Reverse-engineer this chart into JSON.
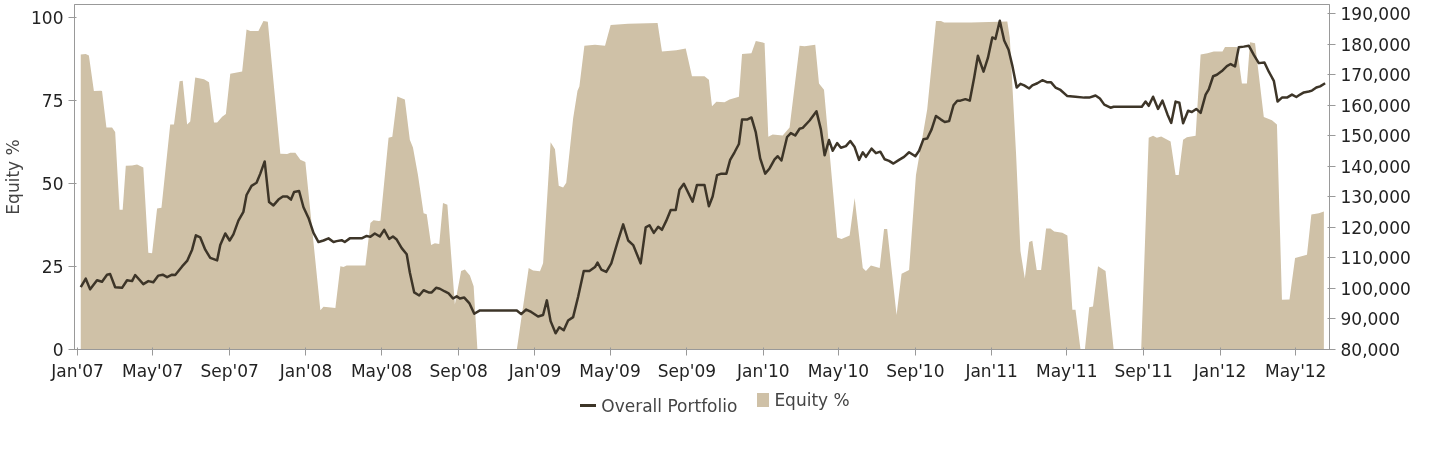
{
  "chart_data": {
    "type": "line",
    "ylabel": "Equity %",
    "legend": "bottom",
    "grid": false,
    "xlim": [
      "2006-12-27",
      "2012-06-24"
    ],
    "xticks": [
      {
        "value": "2007-01-01",
        "label": "Jan'07"
      },
      {
        "value": "2007-05-01",
        "label": "May'07"
      },
      {
        "value": "2007-09-01",
        "label": "Sep'07"
      },
      {
        "value": "2008-01-01",
        "label": "Jan'08"
      },
      {
        "value": "2008-05-01",
        "label": "May'08"
      },
      {
        "value": "2008-09-01",
        "label": "Sep'08"
      },
      {
        "value": "2009-01-01",
        "label": "Jan'09"
      },
      {
        "value": "2009-05-01",
        "label": "May'09"
      },
      {
        "value": "2009-09-01",
        "label": "Sep'09"
      },
      {
        "value": "2010-01-01",
        "label": "Jan'10"
      },
      {
        "value": "2010-05-01",
        "label": "May'10"
      },
      {
        "value": "2010-09-01",
        "label": "Sep'10"
      },
      {
        "value": "2011-01-01",
        "label": "Jan'11"
      },
      {
        "value": "2011-05-01",
        "label": "May'11"
      },
      {
        "value": "2011-09-01",
        "label": "Sep'11"
      },
      {
        "value": "2012-01-01",
        "label": "Jan'12"
      },
      {
        "value": "2012-05-01",
        "label": "May'12"
      }
    ],
    "ylim": [
      0,
      104
    ],
    "yticks": [
      0,
      25,
      50,
      75,
      100
    ],
    "y2lim": [
      80000,
      193000
    ],
    "y2ticks": [
      {
        "value": 80000,
        "label": "80,000"
      },
      {
        "value": 90000,
        "label": "90,000"
      },
      {
        "value": 100000,
        "label": "100,000"
      },
      {
        "value": 110000,
        "label": "110,000"
      },
      {
        "value": 120000,
        "label": "120,000"
      },
      {
        "value": 130000,
        "label": "130,000"
      },
      {
        "value": 140000,
        "label": "140,000"
      },
      {
        "value": 150000,
        "label": "150,000"
      },
      {
        "value": 160000,
        "label": "160,000"
      },
      {
        "value": 170000,
        "label": "170,000"
      },
      {
        "value": 180000,
        "label": "180,000"
      },
      {
        "value": 190000,
        "label": "190,000"
      }
    ],
    "series": [
      {
        "name": "Overall Portfolio",
        "axis": "y2",
        "color": "#3d3528",
        "line_style": "solid",
        "x": [
          "2007-01-06",
          "2007-01-14",
          "2007-01-21",
          "2007-02-01",
          "2007-02-09",
          "2007-02-17",
          "2007-02-22",
          "2007-03-02",
          "2007-03-13",
          "2007-03-21",
          "2007-03-29",
          "2007-04-03",
          "2007-04-16",
          "2007-04-24",
          "2007-05-02",
          "2007-05-10",
          "2007-05-17",
          "2007-05-24",
          "2007-06-01",
          "2007-06-06",
          "2007-06-17",
          "2007-06-25",
          "2007-07-03",
          "2007-07-09",
          "2007-07-16",
          "2007-07-24",
          "2007-08-01",
          "2007-08-12",
          "2007-08-17",
          "2007-08-25",
          "2007-09-01",
          "2007-09-07",
          "2007-09-15",
          "2007-09-23",
          "2007-09-28",
          "2007-10-06",
          "2007-10-14",
          "2007-10-20",
          "2007-10-27",
          "2007-11-03",
          "2007-11-10",
          "2007-11-18",
          "2007-11-25",
          "2007-12-02",
          "2007-12-08",
          "2007-12-13",
          "2007-12-21",
          "2007-12-28",
          "2008-01-05",
          "2008-01-13",
          "2008-01-21",
          "2008-01-29",
          "2008-02-06",
          "2008-02-14",
          "2008-02-19",
          "2008-02-27",
          "2008-03-03",
          "2008-03-11",
          "2008-03-30",
          "2008-04-07",
          "2008-04-13",
          "2008-04-20",
          "2008-04-28",
          "2008-05-05",
          "2008-05-13",
          "2008-05-19",
          "2008-05-25",
          "2008-06-02",
          "2008-06-10",
          "2008-06-15",
          "2008-06-22",
          "2008-06-30",
          "2008-07-07",
          "2008-07-15",
          "2008-07-20",
          "2008-07-27",
          "2008-08-02",
          "2008-08-10",
          "2008-08-16",
          "2008-08-23",
          "2008-08-29",
          "2008-09-03",
          "2008-09-10",
          "2008-09-18",
          "2008-09-26",
          "2008-10-05",
          "2008-12-03",
          "2008-12-10",
          "2008-12-18",
          "2008-12-26",
          "2009-01-06",
          "2009-01-14",
          "2009-01-20",
          "2009-01-26",
          "2009-02-03",
          "2009-02-09",
          "2009-02-16",
          "2009-02-23",
          "2009-03-03",
          "2009-03-11",
          "2009-03-20",
          "2009-03-29",
          "2009-04-07",
          "2009-04-11",
          "2009-04-17",
          "2009-04-25",
          "2009-05-03",
          "2009-05-13",
          "2009-05-22",
          "2009-05-30",
          "2009-06-07",
          "2009-06-19",
          "2009-06-27",
          "2009-07-03",
          "2009-07-10",
          "2009-07-17",
          "2009-07-23",
          "2009-07-30",
          "2009-08-06",
          "2009-08-14",
          "2009-08-20",
          "2009-08-27",
          "2009-09-10",
          "2009-09-17",
          "2009-09-29",
          "2009-10-06",
          "2009-10-12",
          "2009-10-19",
          "2009-10-26",
          "2009-11-03",
          "2009-11-09",
          "2009-11-16",
          "2009-11-23",
          "2009-11-28",
          "2009-12-06",
          "2009-12-13",
          "2009-12-20",
          "2009-12-27",
          "2010-01-04",
          "2010-01-11",
          "2010-01-19",
          "2010-01-24",
          "2010-01-30",
          "2010-02-08",
          "2010-02-14",
          "2010-02-21",
          "2010-02-28",
          "2010-03-05",
          "2010-03-16",
          "2010-03-27",
          "2010-04-03",
          "2010-04-09",
          "2010-04-16",
          "2010-04-22",
          "2010-04-29",
          "2010-05-05",
          "2010-05-13",
          "2010-05-20",
          "2010-05-27",
          "2010-06-03",
          "2010-06-09",
          "2010-06-14",
          "2010-06-23",
          "2010-06-30",
          "2010-07-07",
          "2010-07-14",
          "2010-07-21",
          "2010-07-28",
          "2010-08-06",
          "2010-08-14",
          "2010-08-22",
          "2010-09-01",
          "2010-09-07",
          "2010-09-14",
          "2010-09-20",
          "2010-09-27",
          "2010-10-04",
          "2010-10-12",
          "2010-10-18",
          "2010-10-25",
          "2010-11-01",
          "2010-11-07",
          "2010-11-12",
          "2010-11-20",
          "2010-11-27",
          "2010-12-04",
          "2010-12-10",
          "2010-12-19",
          "2010-12-26",
          "2011-01-02",
          "2011-01-07",
          "2011-01-14",
          "2011-01-21",
          "2011-01-28",
          "2011-02-03",
          "2011-02-10",
          "2011-02-16",
          "2011-02-22",
          "2011-03-02",
          "2011-03-07",
          "2011-03-15",
          "2011-03-23",
          "2011-03-31",
          "2011-04-06",
          "2011-04-13",
          "2011-04-21",
          "2011-05-02",
          "2011-05-15",
          "2011-05-29",
          "2011-06-06",
          "2011-06-16",
          "2011-06-23",
          "2011-06-30",
          "2011-07-10",
          "2011-07-15",
          "2011-08-29",
          "2011-09-04",
          "2011-09-09",
          "2011-09-16",
          "2011-09-24",
          "2011-10-01",
          "2011-10-09",
          "2011-10-15",
          "2011-10-22",
          "2011-10-28",
          "2011-11-03",
          "2011-11-11",
          "2011-11-17",
          "2011-11-24",
          "2011-12-01",
          "2011-12-09",
          "2011-12-14",
          "2011-12-21",
          "2011-12-27",
          "2012-01-04",
          "2012-01-12",
          "2012-01-18",
          "2012-01-25",
          "2012-01-31",
          "2012-02-08",
          "2012-02-16",
          "2012-02-24",
          "2012-03-03",
          "2012-03-12",
          "2012-03-19",
          "2012-03-27",
          "2012-04-02",
          "2012-04-09",
          "2012-04-17",
          "2012-04-25",
          "2012-05-02",
          "2012-05-08",
          "2012-05-14",
          "2012-05-22",
          "2012-05-27",
          "2012-06-03",
          "2012-06-09",
          "2012-06-17"
        ],
        "values": [
          100400,
          103200,
          99700,
          102700,
          102200,
          104500,
          104700,
          100400,
          100200,
          102700,
          102400,
          104400,
          101400,
          102400,
          102000,
          104200,
          104500,
          103700,
          104500,
          104400,
          107200,
          109000,
          112700,
          117400,
          116700,
          112700,
          110000,
          109200,
          114200,
          118000,
          115700,
          117700,
          122200,
          125100,
          130600,
          133600,
          134600,
          137600,
          141600,
          128300,
          127200,
          129100,
          130100,
          130100,
          129100,
          131600,
          131900,
          126600,
          123100,
          118200,
          115200,
          115700,
          116400,
          115200,
          115500,
          115800,
          115200,
          116400,
          116400,
          117200,
          116900,
          118000,
          117000,
          119200,
          116200,
          117000,
          116000,
          113200,
          111200,
          105200,
          98700,
          97700,
          99400,
          98700,
          98700,
          100200,
          99900,
          99000,
          98400,
          96700,
          97400,
          96700,
          97000,
          95200,
          91700,
          92800,
          92800,
          91600,
          93100,
          92300,
          90800,
          91300,
          96100,
          89300,
          85300,
          87300,
          86300,
          89500,
          90600,
          97300,
          105700,
          105700,
          107000,
          108500,
          106200,
          105400,
          108200,
          115200,
          121000,
          115700,
          114200,
          108200,
          120000,
          120700,
          118200,
          120200,
          119200,
          122200,
          125700,
          125700,
          132300,
          134300,
          128400,
          133900,
          133900,
          126900,
          130100,
          137100,
          137600,
          137600,
          142100,
          144600,
          147300,
          155300,
          155300,
          156000,
          151100,
          142600,
          137600,
          139300,
          142300,
          143300,
          141900,
          149600,
          150900,
          150100,
          152300,
          152600,
          155000,
          158000,
          152100,
          143600,
          148600,
          145100,
          147600,
          146100,
          146600,
          148300,
          146300,
          142100,
          144600,
          143100,
          145800,
          144300,
          144800,
          142300,
          141800,
          140900,
          142100,
          143100,
          144600,
          143300,
          145100,
          148900,
          149100,
          152100,
          156500,
          155300,
          154500,
          154800,
          160000,
          161500,
          161500,
          162000,
          161500,
          169000,
          176200,
          171000,
          175500,
          182200,
          181700,
          187700,
          181200,
          178200,
          173000,
          165800,
          167000,
          166500,
          165500,
          166500,
          167200,
          168200,
          167500,
          167500,
          165800,
          165000,
          163000,
          162800,
          162500,
          162500,
          163200,
          162200,
          160200,
          159200,
          159500,
          159500,
          161200,
          159800,
          162800,
          158800,
          161500,
          157000,
          154200,
          161200,
          160800,
          154100,
          158200,
          157800,
          158800,
          157500,
          163500,
          165200,
          169500,
          170000,
          171200,
          172800,
          173500,
          172700,
          179000,
          179200,
          179500,
          176500,
          173800,
          174000,
          171000,
          168000,
          161200,
          162500,
          162500,
          163500,
          162700,
          163500,
          164200,
          164500,
          164800,
          165800,
          166200,
          167200
        ]
      },
      {
        "name": "Equity %",
        "type": "area",
        "color": "#cfc1a7",
        "x": [
          "2007-01-06",
          "2007-01-14",
          "2007-01-19",
          "2007-01-27",
          "2007-02-07",
          "2007-02-09",
          "2007-02-16",
          "2007-02-25",
          "2007-03-02",
          "2007-03-09",
          "2007-03-14",
          "2007-03-19",
          "2007-03-29",
          "2007-04-06",
          "2007-04-16",
          "2007-04-24",
          "2007-04-30",
          "2007-05-08",
          "2007-05-15",
          "2007-05-29",
          "2007-06-04",
          "2007-06-13",
          "2007-06-18",
          "2007-06-25",
          "2007-06-30",
          "2007-07-08",
          "2007-07-22",
          "2007-07-30",
          "2007-08-07",
          "2007-08-12",
          "2007-08-20",
          "2007-08-26",
          "2007-09-02",
          "2007-09-21",
          "2007-09-28",
          "2007-10-04",
          "2007-10-17",
          "2007-10-25",
          "2007-11-01",
          "2007-11-21",
          "2007-12-02",
          "2007-12-07",
          "2007-12-15",
          "2007-12-23",
          "2007-12-31",
          "2008-01-24",
          "2008-01-29",
          "2008-02-06",
          "2008-02-17",
          "2008-02-25",
          "2008-03-01",
          "2008-03-06",
          "2008-04-05",
          "2008-04-13",
          "2008-04-18",
          "2008-04-26",
          "2008-04-29",
          "2008-05-12",
          "2008-05-18",
          "2008-05-26",
          "2008-06-07",
          "2008-06-15",
          "2008-06-20",
          "2008-06-28",
          "2008-07-07",
          "2008-07-12",
          "2008-07-19",
          "2008-07-25",
          "2008-08-01",
          "2008-08-07",
          "2008-08-14",
          "2008-08-26",
          "2008-09-05",
          "2008-09-11",
          "2008-09-19",
          "2008-09-25",
          "2008-10-01",
          "2008-12-03",
          "2008-12-22",
          "2008-12-29",
          "2009-01-09",
          "2009-01-14",
          "2009-01-26",
          "2009-02-02",
          "2009-02-08",
          "2009-02-15",
          "2009-02-20",
          "2009-03-03",
          "2009-03-10",
          "2009-03-13",
          "2009-03-21",
          "2009-04-07",
          "2009-04-23",
          "2009-05-02",
          "2009-05-30",
          "2009-07-16",
          "2009-07-23",
          "2009-08-15",
          "2009-08-30",
          "2009-09-09",
          "2009-09-29",
          "2009-10-06",
          "2009-10-11",
          "2009-10-18",
          "2009-10-31",
          "2009-11-08",
          "2009-11-23",
          "2009-11-28",
          "2009-12-13",
          "2009-12-20",
          "2010-01-03",
          "2010-01-09",
          "2010-01-16",
          "2010-02-01",
          "2010-02-12",
          "2010-02-28",
          "2010-03-08",
          "2010-03-25",
          "2010-03-31",
          "2010-04-08",
          "2010-04-29",
          "2010-05-06",
          "2010-05-19",
          "2010-05-27",
          "2010-06-09",
          "2010-06-14",
          "2010-06-22",
          "2010-07-06",
          "2010-07-13",
          "2010-07-18",
          "2010-08-02",
          "2010-08-10",
          "2010-08-22",
          "2010-09-02",
          "2010-09-20",
          "2010-10-04",
          "2010-10-12",
          "2010-10-17",
          "2010-11-29",
          "2011-01-26",
          "2011-01-30",
          "2011-02-09",
          "2011-02-16",
          "2011-02-23",
          "2011-03-02",
          "2011-03-07",
          "2011-03-14",
          "2011-03-21",
          "2011-03-29",
          "2011-04-05",
          "2011-04-11",
          "2011-04-24",
          "2011-05-02",
          "2011-05-10",
          "2011-05-15",
          "2011-05-23",
          "2011-05-30",
          "2011-06-06",
          "2011-06-12",
          "2011-06-20",
          "2011-07-02",
          "2011-07-15",
          "2011-08-28",
          "2011-09-09",
          "2011-09-16",
          "2011-09-22",
          "2011-09-29",
          "2011-10-14",
          "2011-10-22",
          "2011-10-27",
          "2011-11-03",
          "2011-11-09",
          "2011-11-23",
          "2011-12-01",
          "2011-12-12",
          "2011-12-22",
          "2012-01-05",
          "2012-01-09",
          "2012-01-28",
          "2012-02-05",
          "2012-02-13",
          "2012-02-18",
          "2012-02-26",
          "2012-03-11",
          "2012-03-24",
          "2012-04-01",
          "2012-04-09",
          "2012-04-21",
          "2012-04-30",
          "2012-05-19",
          "2012-05-26",
          "2012-06-07",
          "2012-06-15"
        ],
        "values": [
          88.9,
          89.1,
          88.6,
          77.9,
          78.0,
          77.9,
          66.9,
          66.9,
          65.6,
          42.1,
          42.1,
          55.4,
          55.5,
          55.8,
          54.9,
          29.2,
          29.0,
          42.5,
          42.7,
          67.8,
          67.8,
          80.9,
          81.0,
          67.8,
          68.7,
          82.0,
          81.5,
          80.6,
          68.4,
          68.4,
          70.2,
          71.0,
          83.1,
          83.8,
          96.5,
          96.0,
          96.0,
          99.0,
          98.8,
          59.0,
          58.9,
          59.3,
          59.3,
          57.2,
          56.5,
          11.8,
          12.9,
          12.7,
          12.5,
          25.1,
          24.9,
          25.3,
          25.3,
          38.1,
          39.0,
          38.7,
          38.8,
          63.8,
          64.1,
          76.3,
          75.4,
          63.2,
          60.9,
          52.6,
          41.1,
          40.8,
          31.5,
          32.0,
          31.8,
          44.2,
          43.6,
          13.6,
          23.7,
          24.1,
          22.3,
          19.1,
          0,
          0,
          24.6,
          23.8,
          23.6,
          26.0,
          62.5,
          60.4,
          49.4,
          48.8,
          50.3,
          69.6,
          78.0,
          79.3,
          91.6,
          91.9,
          91.6,
          97.8,
          98.2,
          98.4,
          89.8,
          90.2,
          90.7,
          82.4,
          82.4,
          81.3,
          73.3,
          74.7,
          74.5,
          75.4,
          76.2,
          89.1,
          89.3,
          93.0,
          92.4,
          64.1,
          64.8,
          64.5,
          66.9,
          91.6,
          91.4,
          91.9,
          80.2,
          78.3,
          33.8,
          33.3,
          34.4,
          45.7,
          24.6,
          23.7,
          25.3,
          24.6,
          36.3,
          36.3,
          10.4,
          22.8,
          24.0,
          52.6,
          72.4,
          99.0,
          99.0,
          98.6,
          98.6,
          98.9,
          93.9,
          59.0,
          29.7,
          21.4,
          32.4,
          32.8,
          24.0,
          24.0,
          36.5,
          36.5,
          35.6,
          35.2,
          34.4,
          12.0,
          12.0,
          0,
          0,
          12.7,
          13.0,
          25.1,
          23.7,
          0,
          0,
          63.8,
          64.4,
          63.8,
          64.2,
          62.7,
          52.6,
          52.6,
          63.2,
          64.0,
          64.4,
          88.9,
          89.3,
          89.8,
          89.8,
          91.2,
          91.2,
          80.2,
          80.2,
          92.6,
          92.3,
          70.1,
          69.1,
          67.8,
          15.0,
          15.1,
          27.6,
          28.6,
          40.7,
          41.1,
          41.6
        ]
      }
    ]
  }
}
